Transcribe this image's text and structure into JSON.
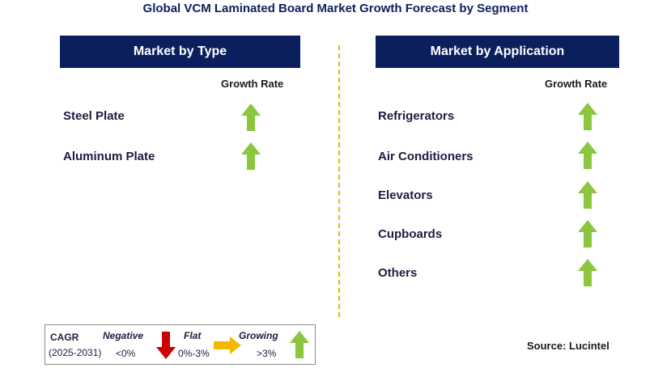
{
  "title": "Global VCM Laminated Board Market Growth Forecast by Segment",
  "colors": {
    "header_bg": "#0b1f5e",
    "growing_arrow": "#8cc63f",
    "negative_arrow": "#cc0000",
    "flat_arrow": "#f5b800",
    "divider": "#f0b400"
  },
  "chart_data": {
    "type": "table",
    "title": "Global VCM Laminated Board Market Growth Forecast by Segment",
    "panels": [
      {
        "header": "Market by Type",
        "column_label": "Growth Rate",
        "rows": [
          {
            "segment": "Steel Plate",
            "trend": "growing"
          },
          {
            "segment": "Aluminum Plate",
            "trend": "growing"
          }
        ]
      },
      {
        "header": "Market by Application",
        "column_label": "Growth Rate",
        "rows": [
          {
            "segment": "Refrigerators",
            "trend": "growing"
          },
          {
            "segment": "Air Conditioners",
            "trend": "growing"
          },
          {
            "segment": "Elevators",
            "trend": "growing"
          },
          {
            "segment": "Cupboards",
            "trend": "growing"
          },
          {
            "segment": "Others",
            "trend": "growing"
          }
        ]
      }
    ]
  },
  "legend": {
    "cagr_label": "CAGR",
    "period": "(2025-2031)",
    "negative": {
      "label": "Negative",
      "range": "<0%"
    },
    "flat": {
      "label": "Flat",
      "range": "0%-3%"
    },
    "growing": {
      "label": "Growing",
      "range": ">3%"
    }
  },
  "source": "Source: Lucintel"
}
